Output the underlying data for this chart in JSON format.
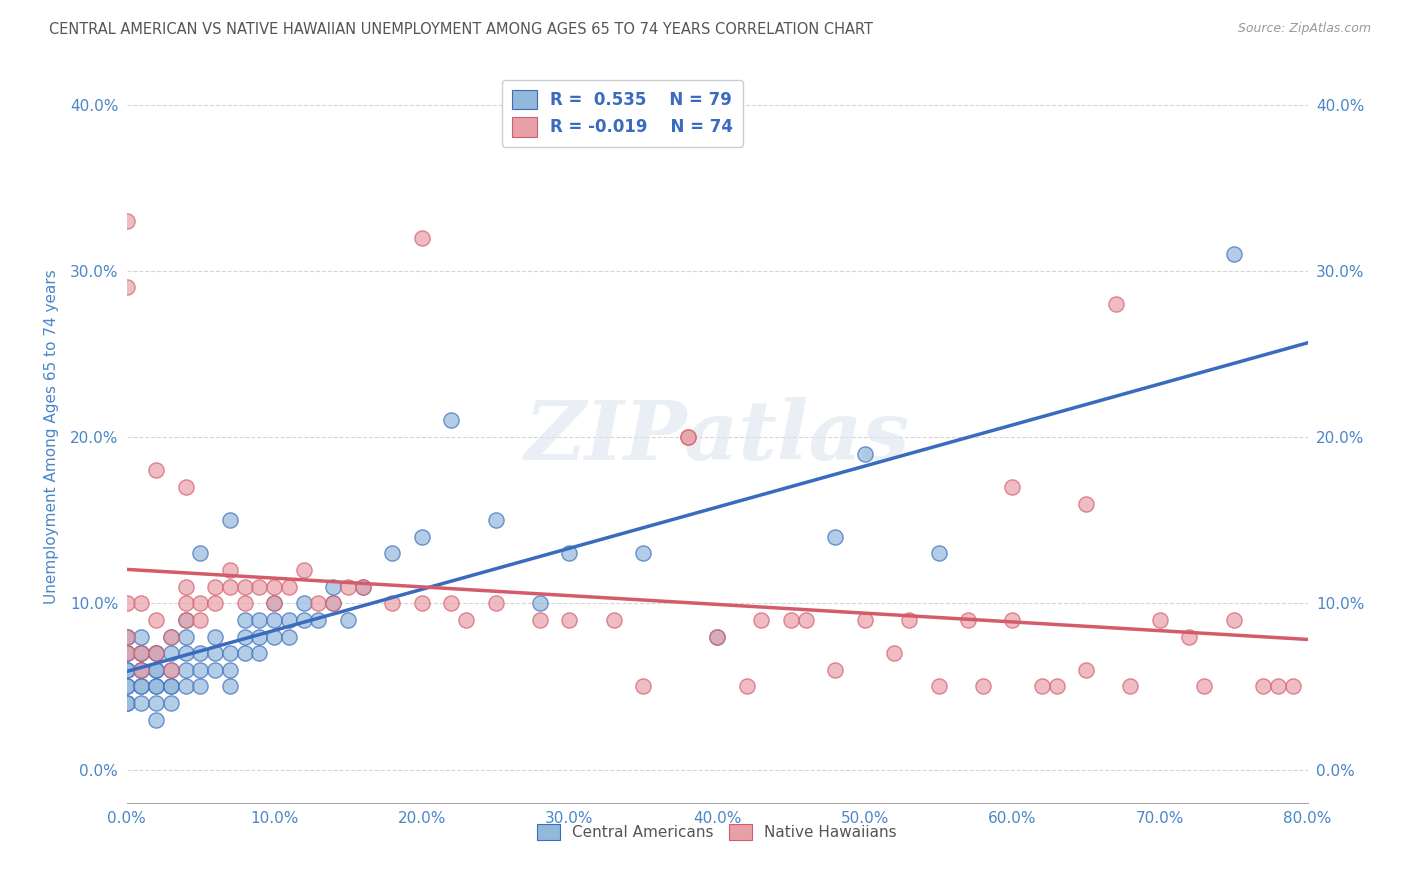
{
  "title": "CENTRAL AMERICAN VS NATIVE HAWAIIAN UNEMPLOYMENT AMONG AGES 65 TO 74 YEARS CORRELATION CHART",
  "source": "Source: ZipAtlas.com",
  "ylabel": "Unemployment Among Ages 65 to 74 years",
  "xlim": [
    0.0,
    0.8
  ],
  "ylim": [
    -0.02,
    0.42
  ],
  "blue_color": "#92b8db",
  "pink_color": "#e8a0a8",
  "blue_line_color": "#3a6bbf",
  "pink_line_color": "#d45c6a",
  "legend_label_blue": "Central Americans",
  "legend_label_pink": "Native Hawaiians",
  "watermark": "ZIPatlas",
  "background_color": "#ffffff",
  "grid_color": "#cccccc",
  "title_color": "#555555",
  "axis_label_color": "#4a86c8",
  "blue_scatter_x": [
    0.0,
    0.0,
    0.0,
    0.0,
    0.0,
    0.0,
    0.0,
    0.0,
    0.0,
    0.0,
    0.01,
    0.01,
    0.01,
    0.01,
    0.01,
    0.01,
    0.01,
    0.01,
    0.02,
    0.02,
    0.02,
    0.02,
    0.02,
    0.02,
    0.02,
    0.02,
    0.03,
    0.03,
    0.03,
    0.03,
    0.03,
    0.03,
    0.04,
    0.04,
    0.04,
    0.04,
    0.04,
    0.05,
    0.05,
    0.05,
    0.05,
    0.06,
    0.06,
    0.06,
    0.07,
    0.07,
    0.07,
    0.07,
    0.08,
    0.08,
    0.08,
    0.09,
    0.09,
    0.09,
    0.1,
    0.1,
    0.1,
    0.11,
    0.11,
    0.12,
    0.12,
    0.13,
    0.14,
    0.14,
    0.15,
    0.16,
    0.18,
    0.2,
    0.22,
    0.25,
    0.28,
    0.3,
    0.35,
    0.4,
    0.48,
    0.5,
    0.55,
    0.75
  ],
  "blue_scatter_y": [
    0.04,
    0.04,
    0.05,
    0.05,
    0.06,
    0.06,
    0.07,
    0.07,
    0.08,
    0.08,
    0.04,
    0.05,
    0.05,
    0.06,
    0.06,
    0.07,
    0.07,
    0.08,
    0.03,
    0.04,
    0.05,
    0.05,
    0.06,
    0.06,
    0.07,
    0.07,
    0.04,
    0.05,
    0.05,
    0.06,
    0.07,
    0.08,
    0.05,
    0.06,
    0.07,
    0.08,
    0.09,
    0.05,
    0.06,
    0.07,
    0.13,
    0.06,
    0.07,
    0.08,
    0.05,
    0.06,
    0.07,
    0.15,
    0.07,
    0.08,
    0.09,
    0.07,
    0.08,
    0.09,
    0.08,
    0.09,
    0.1,
    0.08,
    0.09,
    0.09,
    0.1,
    0.09,
    0.1,
    0.11,
    0.09,
    0.11,
    0.13,
    0.14,
    0.21,
    0.15,
    0.1,
    0.13,
    0.13,
    0.08,
    0.14,
    0.19,
    0.13,
    0.31
  ],
  "pink_scatter_x": [
    0.0,
    0.0,
    0.0,
    0.0,
    0.0,
    0.01,
    0.01,
    0.01,
    0.02,
    0.02,
    0.02,
    0.03,
    0.03,
    0.04,
    0.04,
    0.04,
    0.04,
    0.05,
    0.05,
    0.06,
    0.06,
    0.07,
    0.07,
    0.08,
    0.08,
    0.09,
    0.1,
    0.1,
    0.11,
    0.12,
    0.13,
    0.14,
    0.15,
    0.16,
    0.18,
    0.2,
    0.22,
    0.23,
    0.25,
    0.28,
    0.3,
    0.33,
    0.35,
    0.38,
    0.4,
    0.43,
    0.46,
    0.5,
    0.53,
    0.57,
    0.6,
    0.63,
    0.65,
    0.67,
    0.7,
    0.72,
    0.75,
    0.77,
    0.79,
    0.6,
    0.65,
    0.38,
    0.55,
    0.58,
    0.68,
    0.73,
    0.78,
    0.42,
    0.48,
    0.52,
    0.2,
    0.45,
    0.62
  ],
  "pink_scatter_y": [
    0.07,
    0.08,
    0.1,
    0.29,
    0.33,
    0.06,
    0.07,
    0.1,
    0.07,
    0.09,
    0.18,
    0.06,
    0.08,
    0.09,
    0.1,
    0.11,
    0.17,
    0.09,
    0.1,
    0.1,
    0.11,
    0.11,
    0.12,
    0.1,
    0.11,
    0.11,
    0.1,
    0.11,
    0.11,
    0.12,
    0.1,
    0.1,
    0.11,
    0.11,
    0.1,
    0.1,
    0.1,
    0.09,
    0.1,
    0.09,
    0.09,
    0.09,
    0.05,
    0.2,
    0.08,
    0.09,
    0.09,
    0.09,
    0.09,
    0.09,
    0.09,
    0.05,
    0.06,
    0.28,
    0.09,
    0.08,
    0.09,
    0.05,
    0.05,
    0.17,
    0.16,
    0.2,
    0.05,
    0.05,
    0.05,
    0.05,
    0.05,
    0.05,
    0.06,
    0.07,
    0.32,
    0.09,
    0.05
  ]
}
